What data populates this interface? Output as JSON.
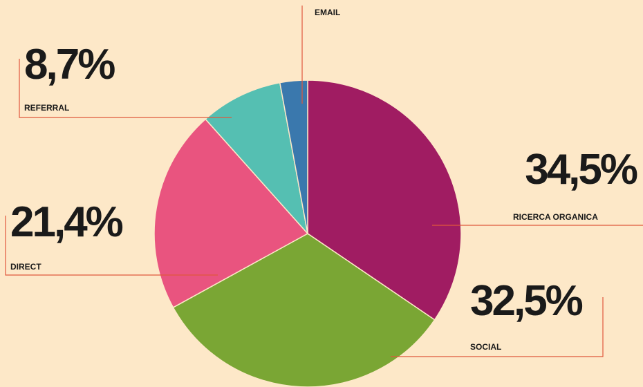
{
  "chart_data": {
    "type": "pie",
    "categories": [
      "RICERCA ORGANICA",
      "SOCIAL",
      "DIRECT",
      "REFERRAL",
      "EMAIL"
    ],
    "values": [
      34.5,
      32.5,
      21.4,
      8.7,
      2.9
    ],
    "value_labels": [
      "34,5%",
      "32,5%",
      "21,4%",
      "8,7%",
      null
    ],
    "colors": [
      "#a01c62",
      "#7aa634",
      "#e9547f",
      "#55bfb2",
      "#3a78ad"
    ]
  }
}
